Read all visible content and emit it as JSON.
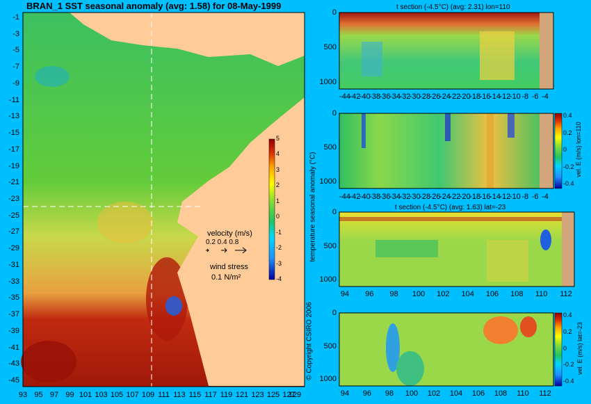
{
  "chart_data": [
    {
      "type": "heatmap",
      "title": "BRAN_1 SST seasonal anomaly (avg: 1.58) for 08-May-1999",
      "x_tick_labels": [
        "93",
        "95",
        "97",
        "99",
        "101",
        "103",
        "105",
        "107",
        "109",
        "111",
        "113",
        "115",
        "117",
        "119",
        "121",
        "123",
        "125",
        "127",
        "129"
      ],
      "y_tick_labels": [
        "-1",
        "-3",
        "-5",
        "-7",
        "-9",
        "-11",
        "-13",
        "-15",
        "-17",
        "-19",
        "-21",
        "-23",
        "-25",
        "-27",
        "-29",
        "-31",
        "-33",
        "-35",
        "-37",
        "-39",
        "-41",
        "-43",
        "-45"
      ],
      "colorbar": {
        "label": "temperature seasonal anomaly (°C)",
        "ticks": [
          "5",
          "4",
          "3",
          "2",
          "1",
          "0",
          "-1",
          "-2",
          "-3",
          "-4"
        ],
        "range": [
          -4,
          5
        ]
      },
      "legend": {
        "velocity_label": "velocity (m/s)",
        "velocity_scale": "0.2 0.4 0.8",
        "wind_label": "wind stress",
        "wind_scale": "0.1 N/m²"
      },
      "section_lines": {
        "lon": 110,
        "lat": -23
      },
      "copyright": "© Copyright CSIRO 2006"
    },
    {
      "type": "heatmap",
      "title": "t section (-4.5°C) (avg: 2.31) lon=110",
      "x_tick_labels": [
        "-44",
        "-42",
        "-40",
        "-38",
        "-36",
        "-34",
        "-32",
        "-30",
        "-28",
        "-26",
        "-24",
        "-22",
        "-20",
        "-18",
        "-16",
        "-14",
        "-12",
        "-10",
        "-8",
        "-6",
        "-4"
      ],
      "y_tick_labels": [
        "0",
        "500",
        "1000"
      ]
    },
    {
      "type": "heatmap",
      "title": "",
      "x_tick_labels": [
        "-44",
        "-42",
        "-40",
        "-38",
        "-36",
        "-34",
        "-32",
        "-30",
        "-28",
        "-26",
        "-24",
        "-22",
        "-20",
        "-18",
        "-16",
        "-14",
        "-12",
        "-10",
        "-8",
        "-6",
        "-4"
      ],
      "y_tick_labels": [
        "0",
        "500",
        "1000"
      ],
      "colorbar": {
        "label": "vel. E (m/s) lon=110",
        "ticks": [
          "0.4",
          "0.2",
          "0",
          "-0.2",
          "-0.4"
        ],
        "range": [
          -0.4,
          0.4
        ]
      }
    },
    {
      "type": "heatmap",
      "title": "t section (-4.5°C) (avg: 1.63) lat=-23",
      "x_tick_labels": [
        "94",
        "96",
        "98",
        "100",
        "102",
        "104",
        "106",
        "108",
        "110",
        "112"
      ],
      "y_tick_labels": [
        "0",
        "500",
        "1000"
      ]
    },
    {
      "type": "heatmap",
      "title": "",
      "x_tick_labels": [
        "94",
        "96",
        "98",
        "100",
        "102",
        "104",
        "106",
        "108",
        "110",
        "112"
      ],
      "y_tick_labels": [
        "0",
        "500",
        "1000"
      ],
      "colorbar": {
        "label": "vel. E (m/s) lat=-23",
        "ticks": [
          "0.4",
          "0.2",
          "0",
          "-0.2",
          "-0.4"
        ],
        "range": [
          -0.4,
          0.4
        ]
      }
    }
  ]
}
